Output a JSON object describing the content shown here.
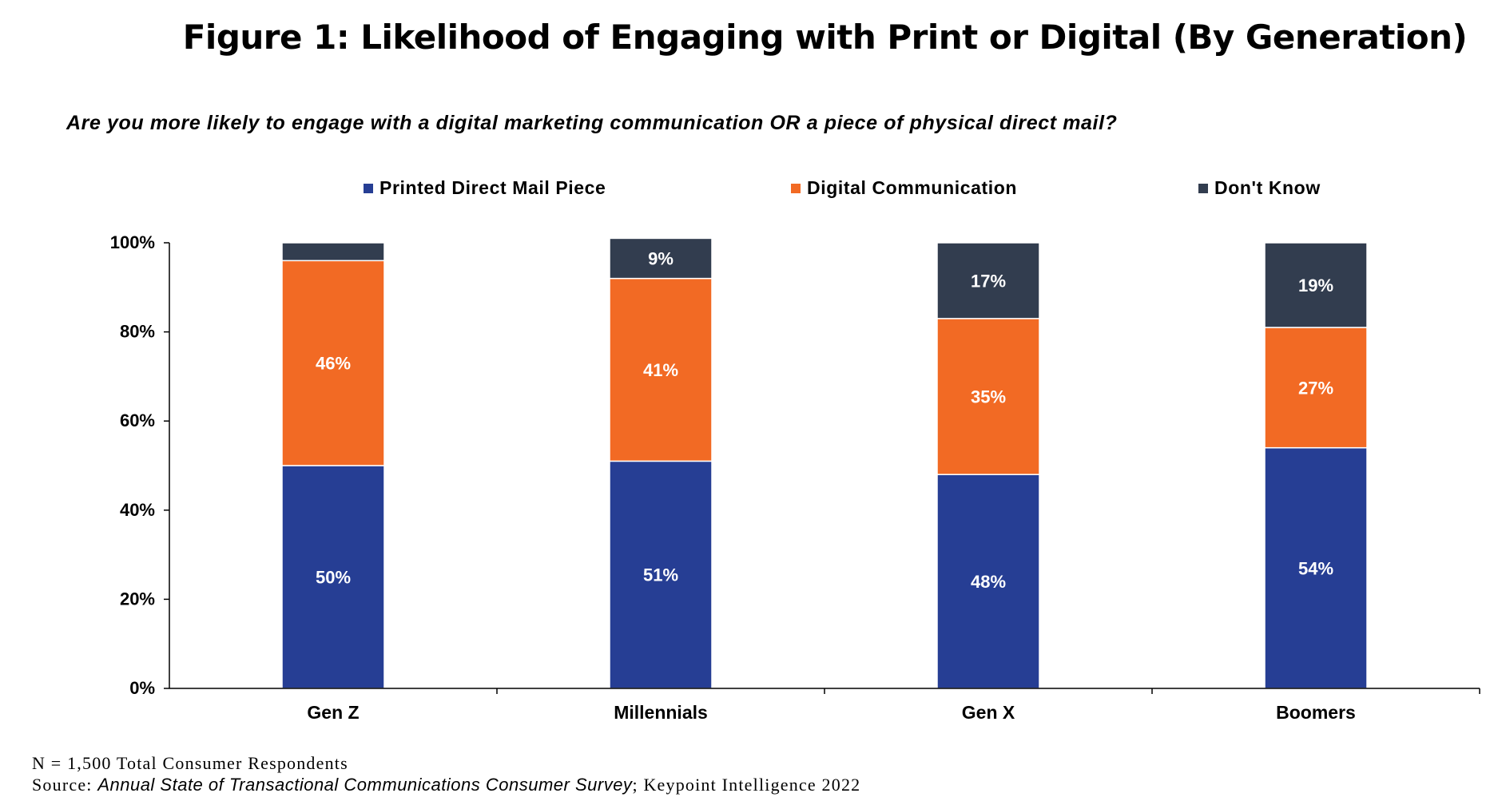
{
  "title": "Figure 1: Likelihood of Engaging with Print or Digital (By Generation)",
  "subtitle": "Are you more likely to engage with a digital marketing communication OR a piece of physical direct mail?",
  "legend": [
    {
      "label": "Printed Direct Mail Piece",
      "color": "#263e94"
    },
    {
      "label": "Digital Communication",
      "color": "#f26a24"
    },
    {
      "label": "Don't Know",
      "color": "#323d4f"
    }
  ],
  "footnote": {
    "n_line": "N = 1,500 Total Consumer Respondents",
    "source_prefix": "Source: ",
    "source_title": "Annual State of Transactional Communications Consumer Survey",
    "source_suffix": "; Keypoint Intelligence 2022"
  },
  "chart_data": {
    "type": "bar",
    "stacked": true,
    "categories": [
      "Gen Z",
      "Millennials",
      "Gen X",
      "Boomers"
    ],
    "series": [
      {
        "name": "Printed Direct Mail Piece",
        "color": "#263e94",
        "values": [
          50,
          51,
          48,
          54
        ],
        "labels": [
          "50%",
          "51%",
          "48%",
          "54%"
        ]
      },
      {
        "name": "Digital Communication",
        "color": "#f26a24",
        "values": [
          46,
          41,
          35,
          27
        ],
        "labels": [
          "46%",
          "41%",
          "35%",
          "27%"
        ]
      },
      {
        "name": "Don't Know",
        "color": "#323d4f",
        "values": [
          4,
          9,
          17,
          19
        ],
        "labels": [
          "",
          "9%",
          "17%",
          "19%"
        ]
      }
    ],
    "ylim": [
      0,
      100
    ],
    "yticks": [
      0,
      20,
      40,
      60,
      80,
      100
    ],
    "ytick_labels": [
      "0%",
      "20%",
      "40%",
      "60%",
      "80%",
      "100%"
    ],
    "xlabel": "",
    "ylabel": "",
    "legend_position": "top"
  }
}
